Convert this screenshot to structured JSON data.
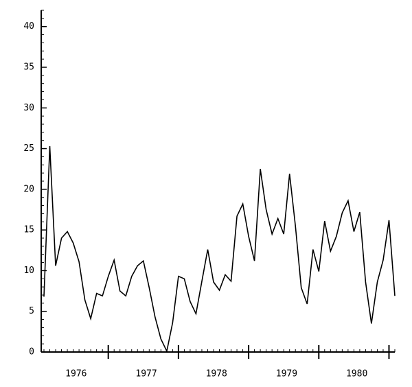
{
  "chart_data": {
    "type": "line",
    "color": "#000000",
    "values": [
      6.8,
      25.3,
      10.6,
      14.0,
      14.8,
      13.4,
      11.1,
      6.4,
      4.1,
      7.2,
      6.9,
      9.3,
      11.3,
      7.5,
      6.9,
      9.3,
      10.6,
      11.2,
      7.9,
      4.3,
      1.6,
      0.1,
      3.6,
      9.3,
      9.0,
      6.2,
      4.7,
      8.7,
      12.6,
      8.6,
      7.6,
      9.5,
      8.7,
      16.7,
      18.2,
      14.2,
      11.2,
      22.5,
      17.5,
      14.5,
      16.4,
      14.5,
      21.9,
      15.5,
      7.9,
      5.9,
      12.6,
      9.9,
      16.1,
      12.4,
      14.2,
      17.1,
      18.6,
      14.8,
      17.2,
      8.6,
      3.5,
      8.6,
      11.3,
      16.2,
      6.9
    ],
    "year_labels": [
      "1976",
      "1977",
      "1978",
      "1979",
      "1980"
    ],
    "ylim": [
      0,
      42
    ],
    "yticks": [
      0,
      5,
      10,
      15,
      20,
      25,
      30,
      35,
      40
    ]
  }
}
